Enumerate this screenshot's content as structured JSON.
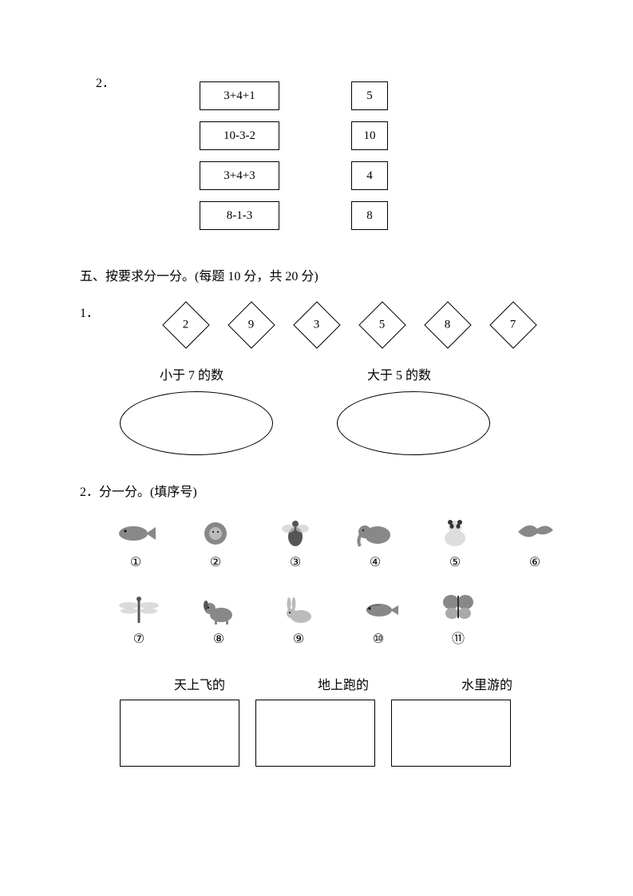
{
  "q2": {
    "num": "2．",
    "expressions": [
      "3+4+1",
      "10-3-2",
      "3+4+3",
      "8-1-3"
    ],
    "answers": [
      "5",
      "10",
      "4",
      "8"
    ]
  },
  "section5": {
    "title": "五、按要求分一分。(每题 10 分，共 20 分)"
  },
  "s5q1": {
    "num": "1．",
    "diamonds": [
      "2",
      "9",
      "3",
      "5",
      "8",
      "7"
    ],
    "label_left": "小于 7 的数",
    "label_right": "大于 5 的数"
  },
  "s5q2": {
    "title": "2．分一分。(填序号)",
    "animals_row1": [
      {
        "n": "①",
        "name": "fish"
      },
      {
        "n": "②",
        "name": "lion"
      },
      {
        "n": "③",
        "name": "bee"
      },
      {
        "n": "④",
        "name": "elephant"
      },
      {
        "n": "⑤",
        "name": "panda"
      },
      {
        "n": "⑥",
        "name": "bird"
      }
    ],
    "animals_row2": [
      {
        "n": "⑦",
        "name": "dragonfly"
      },
      {
        "n": "⑧",
        "name": "dog"
      },
      {
        "n": "⑨",
        "name": "rabbit"
      },
      {
        "n": "⑩",
        "name": "fish2"
      },
      {
        "n": "⑪",
        "name": "butterfly"
      }
    ],
    "cat1": "天上飞的",
    "cat2": "地上跑的",
    "cat3": "水里游的"
  }
}
